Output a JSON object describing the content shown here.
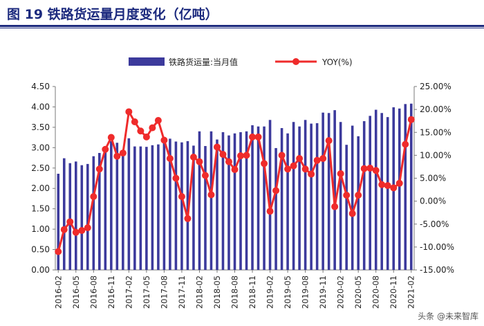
{
  "figure": {
    "title": "图 19 铁路货运量月度变化（亿吨）"
  },
  "watermark": "头条 @未来智库",
  "colors": {
    "bar": "#3c3a9c",
    "line": "#ef2b2b",
    "title": "#1c2a7e"
  },
  "chart_data": {
    "type": "bar",
    "title": "铁路货运量月度变化（亿吨）",
    "legend_position": "top-center",
    "x": [
      "2016-02",
      "2016-03",
      "2016-04",
      "2016-05",
      "2016-06",
      "2016-07",
      "2016-08",
      "2016-09",
      "2016-10",
      "2016-11",
      "2016-12",
      "2017-01",
      "2017-02",
      "2017-03",
      "2017-04",
      "2017-05",
      "2017-06",
      "2017-07",
      "2017-08",
      "2017-09",
      "2017-10",
      "2017-11",
      "2017-12",
      "2018-01",
      "2018-02",
      "2018-03",
      "2018-04",
      "2018-05",
      "2018-06",
      "2018-07",
      "2018-08",
      "2018-09",
      "2018-10",
      "2018-11",
      "2018-12",
      "2019-01",
      "2019-02",
      "2019-03",
      "2019-04",
      "2019-05",
      "2019-06",
      "2019-07",
      "2019-08",
      "2019-09",
      "2019-10",
      "2019-11",
      "2019-12",
      "2020-01",
      "2020-02",
      "2020-03",
      "2020-04",
      "2020-05",
      "2020-06",
      "2020-07",
      "2020-08",
      "2020-09",
      "2020-10",
      "2020-11",
      "2020-12",
      "2021-01",
      "2021-02"
    ],
    "x_tick_labels": [
      "2016-02",
      "2016-05",
      "2016-08",
      "2016-11",
      "2017-02",
      "2017-05",
      "2017-08",
      "2017-11",
      "2018-02",
      "2018-05",
      "2018-08",
      "2018-11",
      "2019-02",
      "2019-05",
      "2019-08",
      "2019-11",
      "2020-02",
      "2020-05",
      "2020-08",
      "2020-11",
      "2021-02"
    ],
    "series": [
      {
        "name": "铁路货运量:当月值",
        "type": "bar",
        "axis": "left",
        "values": [
          2.36,
          2.74,
          2.62,
          2.66,
          2.57,
          2.6,
          2.79,
          2.87,
          3.03,
          3.16,
          3.12,
          2.88,
          3.23,
          3.03,
          3.03,
          3.02,
          3.06,
          3.08,
          3.12,
          3.22,
          3.15,
          3.13,
          3.16,
          3.05,
          3.4,
          3.04,
          3.4,
          3.2,
          3.38,
          3.3,
          3.35,
          3.38,
          3.4,
          3.55,
          3.52,
          3.52,
          3.68,
          2.99,
          3.48,
          3.35,
          3.63,
          3.52,
          3.68,
          3.59,
          3.6,
          3.86,
          3.85,
          3.92,
          3.63,
          3.07,
          3.54,
          3.28,
          3.65,
          3.78,
          3.93,
          3.85,
          3.75,
          3.99,
          3.96,
          4.07,
          4.08
        ]
      },
      {
        "name": "YOY(%)",
        "type": "line",
        "axis": "right",
        "values": [
          -11.0,
          -6.2,
          -4.5,
          -6.8,
          -6.4,
          -5.8,
          1.0,
          7.0,
          11.3,
          13.9,
          9.8,
          10.5,
          19.5,
          17.3,
          15.3,
          14.0,
          16.0,
          17.6,
          13.3,
          9.3,
          5.0,
          1.0,
          -3.8,
          9.6,
          8.6,
          5.6,
          1.4,
          11.8,
          10.2,
          8.6,
          6.9,
          9.9,
          10.0,
          14.0,
          14.0,
          8.2,
          -2.2,
          2.3,
          10.0,
          7.0,
          7.7,
          9.3,
          7.0,
          5.9,
          8.9,
          9.3,
          13.2,
          -1.2,
          6.0,
          1.3,
          -2.7,
          1.3,
          7.1,
          7.2,
          6.7,
          3.6,
          3.4,
          2.9,
          3.9,
          12.4,
          17.8
        ]
      }
    ],
    "y_left": {
      "min": 0,
      "max": 4.5,
      "step": 0.5,
      "tick_labels": [
        "0.00",
        "0.50",
        "1.00",
        "1.50",
        "2.00",
        "2.50",
        "3.00",
        "3.50",
        "4.00",
        "4.50"
      ]
    },
    "y_right": {
      "min": -15,
      "max": 25,
      "step": 5,
      "tick_labels": [
        "-15.00%",
        "-10.00%",
        "-5.00%",
        "0.00%",
        "5.00%",
        "10.00%",
        "15.00%",
        "20.00%",
        "25.00%"
      ]
    }
  }
}
